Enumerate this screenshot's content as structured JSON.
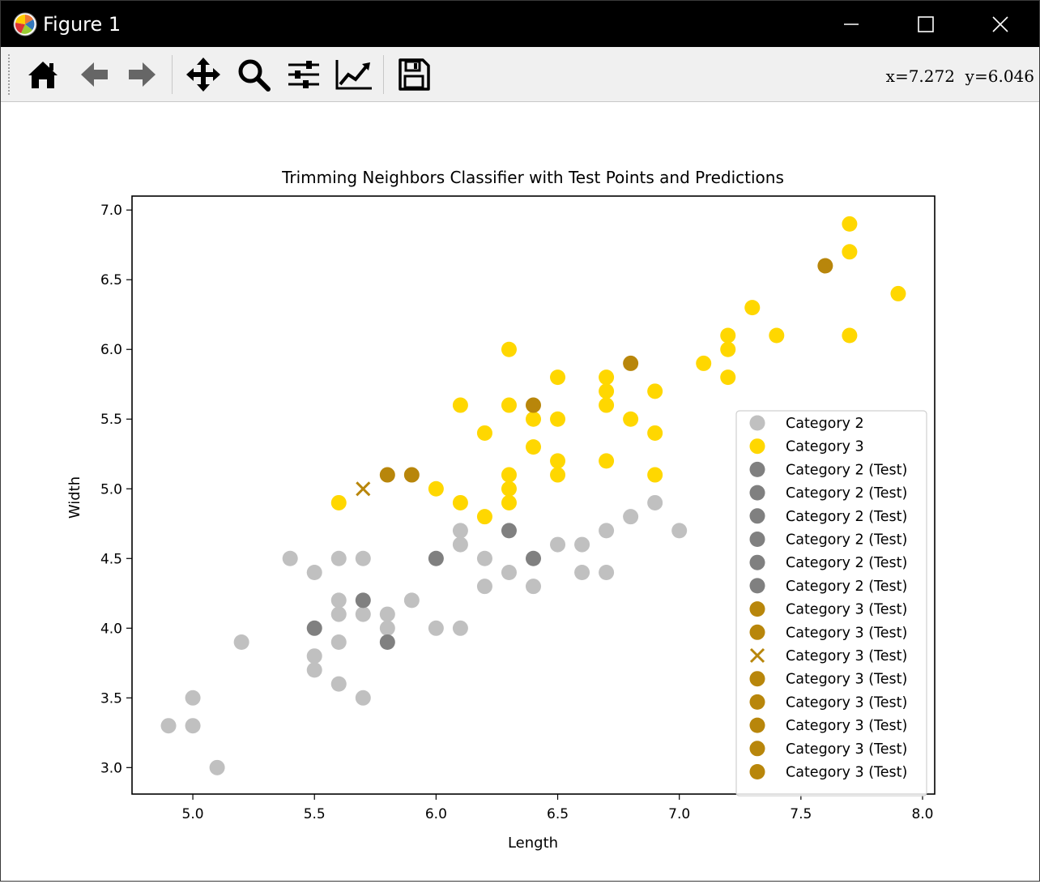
{
  "window": {
    "title": "Figure 1"
  },
  "toolbar": {
    "tools": [
      {
        "name": "home-icon"
      },
      {
        "name": "back-arrow-icon"
      },
      {
        "name": "forward-arrow-icon"
      },
      {
        "name": "pan-icon"
      },
      {
        "name": "zoom-icon"
      },
      {
        "name": "configure-subplots-icon"
      },
      {
        "name": "edit-axis-icon"
      },
      {
        "name": "save-icon"
      }
    ],
    "coords": "x=7.272  y=6.046"
  },
  "colors": {
    "category2": "#c0c0c0",
    "category3": "#ffd700",
    "category2_test": "#808080",
    "category3_test": "#b8860b"
  },
  "chart_data": {
    "type": "scatter",
    "title": "Trimming Neighbors Classifier with Test Points and Predictions",
    "xlabel": "Length",
    "ylabel": "Width",
    "xlim": [
      4.75,
      8.05
    ],
    "ylim": [
      2.81,
      7.1
    ],
    "xticks": [
      "5.0",
      "5.5",
      "6.0",
      "6.5",
      "7.0",
      "7.5",
      "8.0"
    ],
    "xtick_values": [
      5.0,
      5.5,
      6.0,
      6.5,
      7.0,
      7.5,
      8.0
    ],
    "yticks": [
      "3.0",
      "3.5",
      "4.0",
      "4.5",
      "5.0",
      "5.5",
      "6.0",
      "6.5",
      "7.0"
    ],
    "ytick_values": [
      3.0,
      3.5,
      4.0,
      4.5,
      5.0,
      5.5,
      6.0,
      6.5,
      7.0
    ],
    "grid": false,
    "legend_position": "lower-right",
    "series": [
      {
        "name": "Category 2",
        "marker": "o",
        "color": "#c0c0c0",
        "points": [
          [
            4.9,
            3.3
          ],
          [
            5.0,
            3.3
          ],
          [
            5.0,
            3.5
          ],
          [
            5.1,
            3.0
          ],
          [
            5.2,
            3.9
          ],
          [
            5.4,
            4.5
          ],
          [
            5.5,
            4.4
          ],
          [
            5.5,
            3.8
          ],
          [
            5.5,
            3.7
          ],
          [
            5.6,
            4.5
          ],
          [
            5.6,
            4.2
          ],
          [
            5.6,
            4.1
          ],
          [
            5.6,
            3.9
          ],
          [
            5.6,
            3.6
          ],
          [
            5.7,
            4.5
          ],
          [
            5.7,
            4.1
          ],
          [
            5.7,
            3.5
          ],
          [
            5.8,
            4.1
          ],
          [
            5.8,
            4.0
          ],
          [
            5.9,
            4.2
          ],
          [
            6.0,
            4.0
          ],
          [
            6.1,
            4.7
          ],
          [
            6.1,
            4.6
          ],
          [
            6.1,
            4.0
          ],
          [
            6.2,
            4.5
          ],
          [
            6.2,
            4.3
          ],
          [
            6.3,
            4.4
          ],
          [
            6.4,
            4.3
          ],
          [
            6.5,
            4.6
          ],
          [
            6.6,
            4.6
          ],
          [
            6.6,
            4.4
          ],
          [
            6.7,
            4.7
          ],
          [
            6.7,
            4.4
          ],
          [
            6.8,
            4.8
          ],
          [
            6.9,
            4.9
          ],
          [
            7.0,
            4.7
          ]
        ]
      },
      {
        "name": "Category 3",
        "marker": "o",
        "color": "#ffd700",
        "points": [
          [
            5.6,
            4.9
          ],
          [
            6.0,
            5.0
          ],
          [
            6.1,
            5.6
          ],
          [
            6.1,
            4.9
          ],
          [
            6.2,
            5.4
          ],
          [
            6.2,
            4.8
          ],
          [
            6.3,
            6.0
          ],
          [
            6.3,
            5.6
          ],
          [
            6.3,
            5.1
          ],
          [
            6.3,
            5.0
          ],
          [
            6.3,
            4.9
          ],
          [
            6.4,
            5.5
          ],
          [
            6.4,
            5.3
          ],
          [
            6.5,
            5.8
          ],
          [
            6.5,
            5.5
          ],
          [
            6.5,
            5.2
          ],
          [
            6.5,
            5.1
          ],
          [
            6.7,
            5.8
          ],
          [
            6.7,
            5.7
          ],
          [
            6.7,
            5.6
          ],
          [
            6.7,
            5.2
          ],
          [
            6.8,
            5.5
          ],
          [
            6.9,
            5.7
          ],
          [
            6.9,
            5.4
          ],
          [
            6.9,
            5.1
          ],
          [
            7.1,
            5.9
          ],
          [
            7.2,
            6.1
          ],
          [
            7.2,
            6.0
          ],
          [
            7.2,
            5.8
          ],
          [
            7.3,
            6.3
          ],
          [
            7.4,
            6.1
          ],
          [
            7.7,
            6.9
          ],
          [
            7.7,
            6.7
          ],
          [
            7.7,
            6.1
          ],
          [
            7.9,
            6.4
          ]
        ]
      },
      {
        "name": "Category 2 (Test)",
        "marker": "o",
        "color": "#808080",
        "points": [
          [
            5.5,
            4.0
          ]
        ]
      },
      {
        "name": "Category 2 (Test)",
        "marker": "o",
        "color": "#808080",
        "points": [
          [
            5.7,
            4.2
          ]
        ]
      },
      {
        "name": "Category 2 (Test)",
        "marker": "o",
        "color": "#808080",
        "points": [
          [
            5.8,
            3.9
          ]
        ]
      },
      {
        "name": "Category 2 (Test)",
        "marker": "o",
        "color": "#808080",
        "points": [
          [
            6.0,
            4.5
          ]
        ]
      },
      {
        "name": "Category 2 (Test)",
        "marker": "o",
        "color": "#808080",
        "points": [
          [
            6.3,
            4.7
          ]
        ]
      },
      {
        "name": "Category 2 (Test)",
        "marker": "o",
        "color": "#808080",
        "points": [
          [
            6.4,
            4.5
          ]
        ]
      },
      {
        "name": "Category 3 (Test)",
        "marker": "o",
        "color": "#b8860b",
        "points": [
          [
            5.8,
            5.1
          ]
        ]
      },
      {
        "name": "Category 3 (Test)",
        "marker": "o",
        "color": "#b8860b",
        "points": [
          [
            5.9,
            5.1
          ]
        ]
      },
      {
        "name": "Category 3 (Test)",
        "marker": "x",
        "color": "#b8860b",
        "points": [
          [
            5.7,
            5.0
          ]
        ]
      },
      {
        "name": "Category 3 (Test)",
        "marker": "o",
        "color": "#b8860b",
        "points": [
          [
            6.4,
            5.6
          ]
        ]
      },
      {
        "name": "Category 3 (Test)",
        "marker": "o",
        "color": "#b8860b",
        "points": [
          [
            6.8,
            5.9
          ]
        ]
      },
      {
        "name": "Category 3 (Test)",
        "marker": "o",
        "color": "#b8860b",
        "points": [
          [
            7.6,
            6.6
          ]
        ]
      },
      {
        "name": "Category 3 (Test)",
        "marker": "o",
        "color": "#b8860b",
        "points": []
      },
      {
        "name": "Category 3 (Test)",
        "marker": "o",
        "color": "#b8860b",
        "points": []
      }
    ]
  }
}
